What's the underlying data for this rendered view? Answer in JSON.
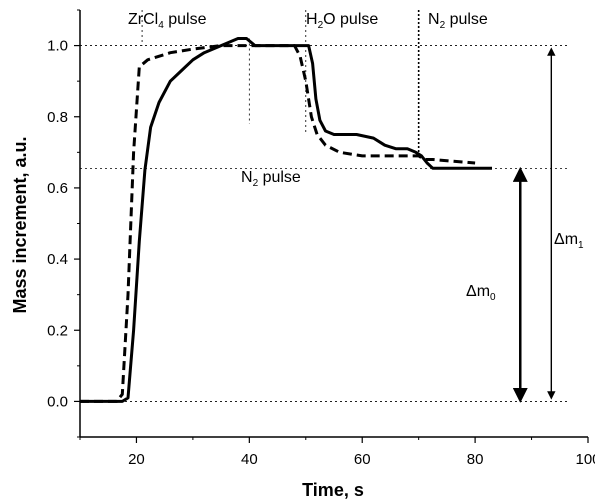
{
  "chart_data": {
    "type": "line",
    "xlabel": "Time, s",
    "ylabel": "Mass increment, a.u.",
    "xlim": [
      10,
      100
    ],
    "ylim": [
      -0.1,
      1.1
    ],
    "x_ticks": [
      20,
      40,
      60,
      80,
      100
    ],
    "y_ticks": [
      0.0,
      0.2,
      0.4,
      0.6,
      0.8,
      1.0
    ],
    "x_tick_labels": [
      "20",
      "40",
      "60",
      "80",
      "100"
    ],
    "y_tick_labels": [
      "0.0",
      "0.2",
      "0.4",
      "0.6",
      "0.8",
      "1.0"
    ],
    "series": [
      {
        "style": "solid",
        "color": "#000000",
        "points": [
          [
            10,
            0
          ],
          [
            17.5,
            0
          ],
          [
            18.5,
            0.01
          ],
          [
            19.5,
            0.2
          ],
          [
            20.5,
            0.45
          ],
          [
            21.5,
            0.65
          ],
          [
            22.5,
            0.77
          ],
          [
            24,
            0.84
          ],
          [
            26,
            0.9
          ],
          [
            28,
            0.93
          ],
          [
            30,
            0.96
          ],
          [
            32,
            0.98
          ],
          [
            35,
            1.0
          ],
          [
            38,
            1.02
          ],
          [
            39.5,
            1.02
          ],
          [
            41,
            1.0
          ],
          [
            45,
            1.0
          ],
          [
            49,
            1.0
          ],
          [
            50.5,
            1.0
          ],
          [
            51.2,
            0.95
          ],
          [
            51.8,
            0.85
          ],
          [
            52.5,
            0.79
          ],
          [
            53.5,
            0.76
          ],
          [
            55,
            0.75
          ],
          [
            59,
            0.75
          ],
          [
            62,
            0.74
          ],
          [
            64,
            0.72
          ],
          [
            66,
            0.71
          ],
          [
            68,
            0.71
          ],
          [
            69.5,
            0.7
          ],
          [
            70.5,
            0.69
          ],
          [
            71.5,
            0.67
          ],
          [
            72.5,
            0.655
          ],
          [
            76,
            0.655
          ],
          [
            83,
            0.655
          ]
        ]
      },
      {
        "style": "dashed",
        "color": "#000000",
        "points": [
          [
            10,
            0
          ],
          [
            16.5,
            0
          ],
          [
            17.5,
            0.02
          ],
          [
            18.5,
            0.3
          ],
          [
            19.5,
            0.7
          ],
          [
            20.5,
            0.94
          ],
          [
            22,
            0.96
          ],
          [
            26,
            0.98
          ],
          [
            30,
            0.99
          ],
          [
            35,
            1.0
          ],
          [
            40,
            1.0
          ],
          [
            45,
            1.0
          ],
          [
            48,
            1.0
          ],
          [
            49,
            0.97
          ],
          [
            50,
            0.9
          ],
          [
            51,
            0.8
          ],
          [
            52,
            0.75
          ],
          [
            53.5,
            0.72
          ],
          [
            56,
            0.7
          ],
          [
            60,
            0.69
          ],
          [
            64,
            0.69
          ],
          [
            68,
            0.69
          ],
          [
            70,
            0.69
          ],
          [
            71,
            0.68
          ],
          [
            72.5,
            0.68
          ],
          [
            76,
            0.675
          ],
          [
            80,
            0.67
          ]
        ]
      }
    ],
    "reference_lines": {
      "horizontal": [
        0.0,
        0.655,
        1.0
      ],
      "vertical": [
        21,
        40,
        50,
        70
      ]
    },
    "annotations": {
      "zrcl4_pulse": {
        "base": "ZrCl",
        "sub": "4",
        "rest": " pulse"
      },
      "n2_pulse_lower": {
        "base": "N",
        "sub": "2",
        "rest": " pulse"
      },
      "h2o_pulse": {
        "base": "H",
        "sub": "2",
        "rest": "O pulse"
      },
      "n2_pulse_upper": {
        "base": "N",
        "sub": "2",
        "rest": " pulse"
      },
      "dm0": {
        "base": "Δm",
        "sub": "0"
      },
      "dm1": {
        "base": "Δm",
        "sub": "1"
      }
    },
    "arrows": {
      "dm0": {
        "x": 88,
        "from": 0.0,
        "to": 0.655
      },
      "dm1": {
        "x": 93.5,
        "from": 0.0,
        "to": 1.0
      }
    }
  }
}
